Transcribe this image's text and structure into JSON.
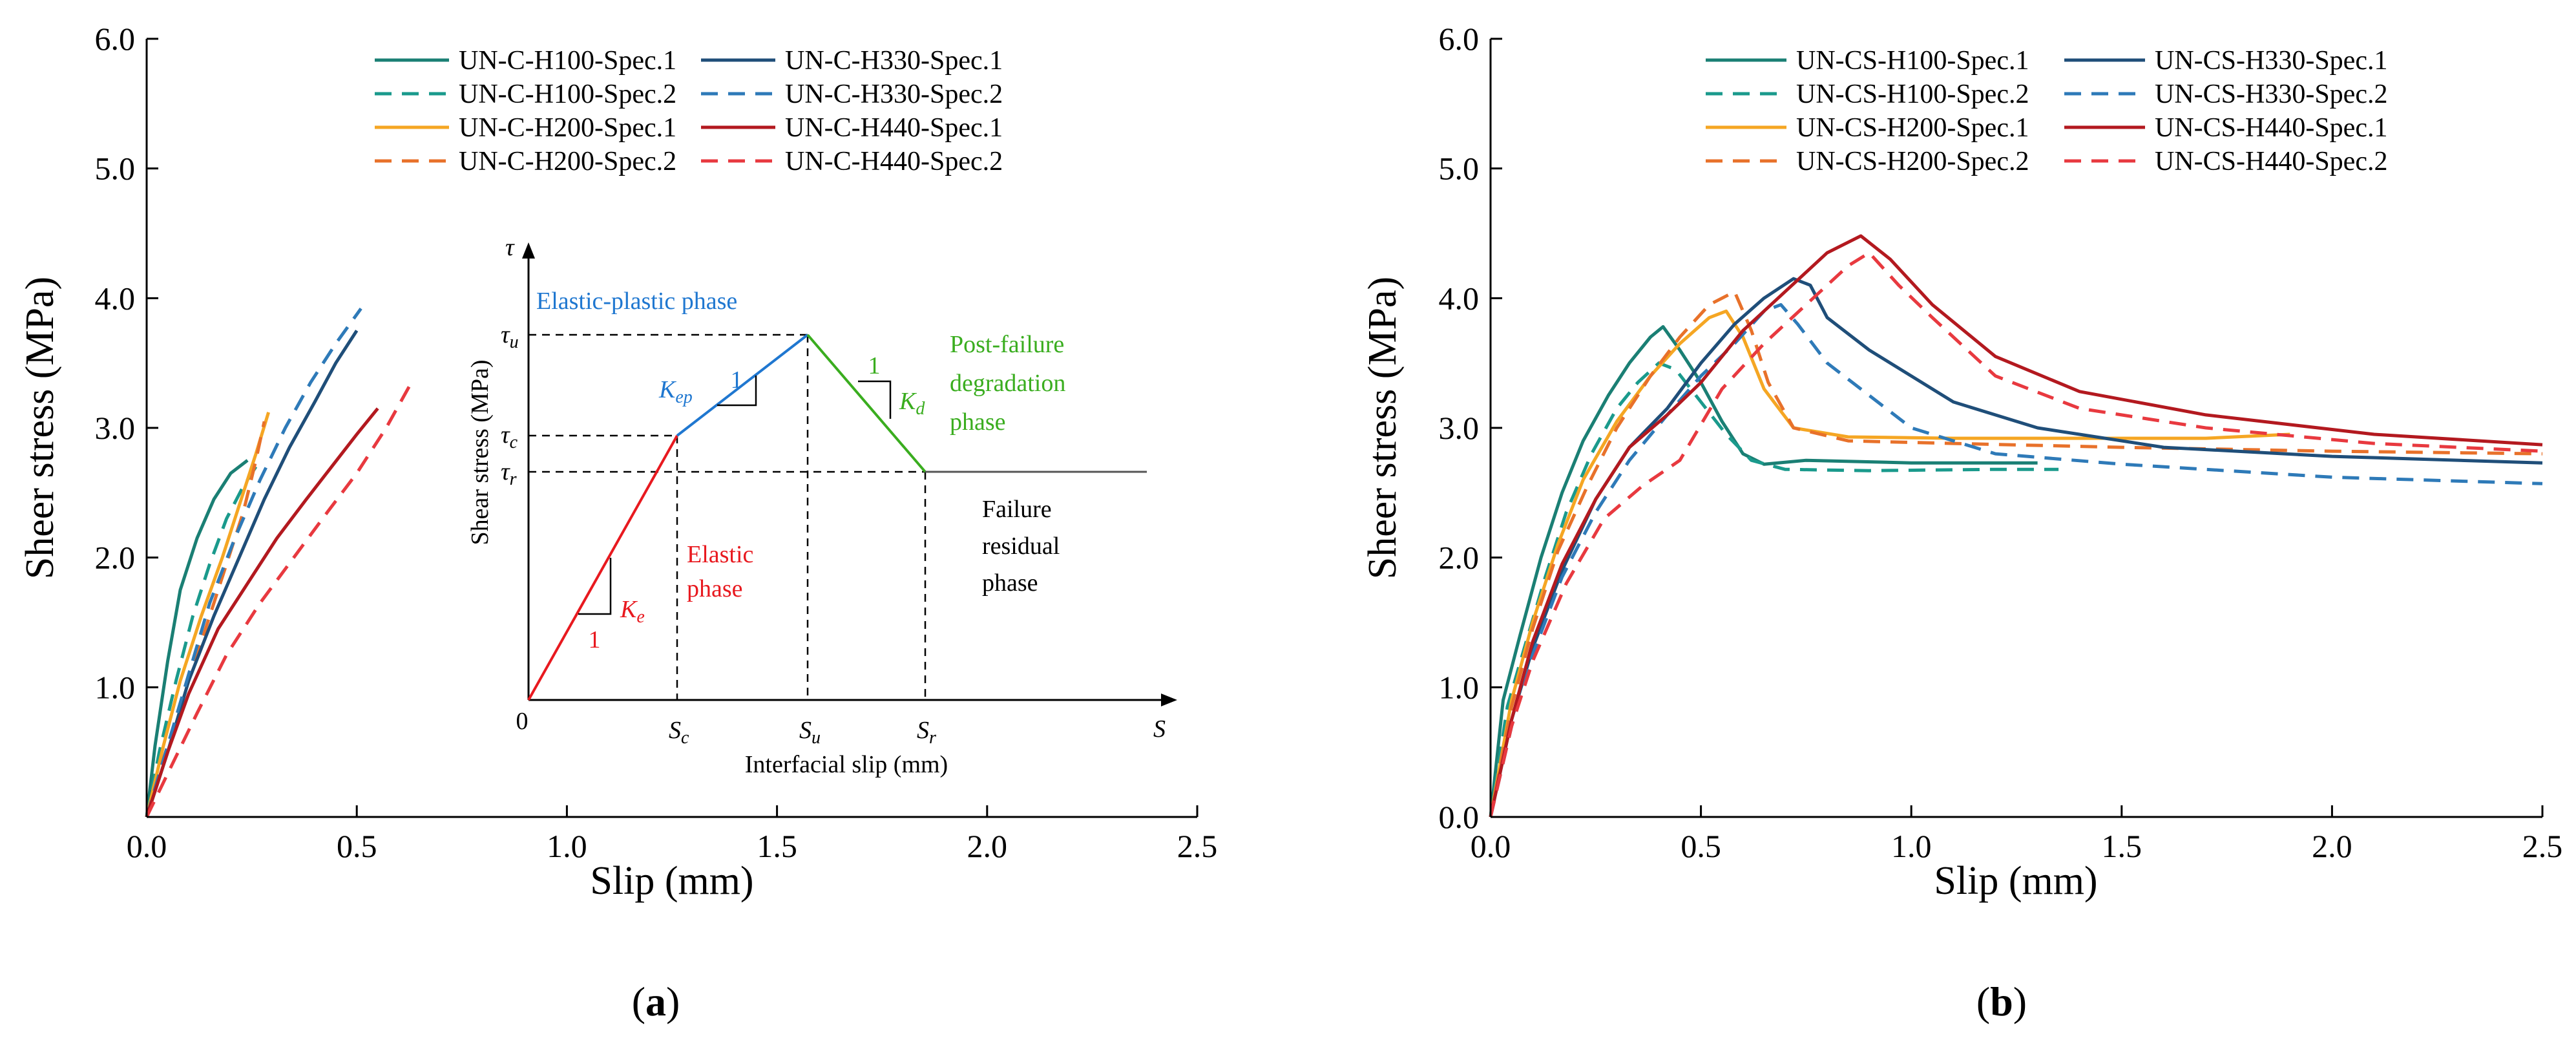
{
  "figure": {
    "panel_a_label": "(a)",
    "panel_a_label_prefix": "(",
    "panel_a_label_letter": "a",
    "panel_a_label_suffix": ")",
    "panel_b_label": "(b)",
    "panel_b_label_prefix": "(",
    "panel_b_label_letter": "b",
    "panel_b_label_suffix": ")"
  },
  "colors": {
    "teal": "#1a7f74",
    "teal2": "#1a9a8c",
    "navy": "#1f4e79",
    "blue": "#2e7ab8",
    "orange": "#f5a623",
    "orange2": "#e8712a",
    "red": "#b3191f",
    "red2": "#e8393f",
    "inset_red": "#e8191f",
    "inset_blue": "#1f77d0",
    "inset_green": "#3aad1f",
    "inset_black": "#333333"
  },
  "chart_data": [
    {
      "panel": "a",
      "type": "line",
      "xlabel": "Slip (mm)",
      "ylabel": "Sheer stress (MPa)",
      "xlim": [
        0,
        2.5
      ],
      "ylim": [
        0,
        6.0
      ],
      "xticks": [
        "0.0",
        "0.5",
        "1.0",
        "1.5",
        "2.0",
        "2.5"
      ],
      "yticks": [
        "1.0",
        "2.0",
        "3.0",
        "4.0",
        "5.0",
        "6.0"
      ],
      "series": [
        {
          "name": "UN-C-H100-Spec.1",
          "color": "#1a7f74",
          "dash": "solid",
          "x": [
            0,
            0.02,
            0.05,
            0.08,
            0.12,
            0.16,
            0.2,
            0.24
          ],
          "y": [
            0,
            0.55,
            1.2,
            1.75,
            2.15,
            2.45,
            2.65,
            2.75
          ]
        },
        {
          "name": "UN-C-H100-Spec.2",
          "color": "#1a9a8c",
          "dash": "dashed",
          "x": [
            0,
            0.03,
            0.07,
            0.11,
            0.15,
            0.19,
            0.23,
            0.26
          ],
          "y": [
            0,
            0.5,
            1.05,
            1.55,
            1.95,
            2.3,
            2.55,
            2.7
          ]
        },
        {
          "name": "UN-C-H200-Spec.1",
          "color": "#f5a623",
          "dash": "solid",
          "x": [
            0,
            0.04,
            0.08,
            0.13,
            0.18,
            0.22,
            0.26,
            0.29
          ],
          "y": [
            0,
            0.55,
            1.05,
            1.55,
            2.0,
            2.4,
            2.8,
            3.12
          ]
        },
        {
          "name": "UN-C-H200-Spec.2",
          "color": "#e8712a",
          "dash": "dashed",
          "x": [
            0,
            0.04,
            0.09,
            0.14,
            0.19,
            0.23,
            0.26,
            0.28
          ],
          "y": [
            0,
            0.45,
            0.95,
            1.45,
            1.95,
            2.35,
            2.75,
            3.05
          ]
        },
        {
          "name": "UN-C-H330-Spec.1",
          "color": "#1f4e79",
          "dash": "solid",
          "x": [
            0,
            0.05,
            0.1,
            0.16,
            0.22,
            0.28,
            0.34,
            0.4,
            0.45,
            0.5
          ],
          "y": [
            0,
            0.5,
            1.05,
            1.55,
            2.0,
            2.45,
            2.85,
            3.2,
            3.5,
            3.75
          ]
        },
        {
          "name": "UN-C-H330-Spec.2",
          "color": "#2e7ab8",
          "dash": "dashed",
          "x": [
            0,
            0.05,
            0.1,
            0.15,
            0.21,
            0.27,
            0.33,
            0.39,
            0.45,
            0.51
          ],
          "y": [
            0,
            0.55,
            1.1,
            1.65,
            2.15,
            2.6,
            3.0,
            3.35,
            3.65,
            3.92
          ]
        },
        {
          "name": "UN-C-H440-Spec.1",
          "color": "#b3191f",
          "dash": "solid",
          "x": [
            0,
            0.05,
            0.1,
            0.17,
            0.24,
            0.31,
            0.38,
            0.44,
            0.5,
            0.55
          ],
          "y": [
            0,
            0.5,
            0.95,
            1.45,
            1.8,
            2.15,
            2.45,
            2.7,
            2.95,
            3.15
          ]
        },
        {
          "name": "UN-C-H440-Spec.2",
          "color": "#e8393f",
          "dash": "dashed",
          "x": [
            0,
            0.06,
            0.12,
            0.19,
            0.27,
            0.35,
            0.43,
            0.5,
            0.57,
            0.63
          ],
          "y": [
            0,
            0.4,
            0.8,
            1.25,
            1.65,
            2.0,
            2.35,
            2.65,
            3.0,
            3.35
          ]
        }
      ],
      "inset": {
        "title": "",
        "ylabel": "Shear stress (MPa)",
        "xlabel": "Interfacial slip (mm)",
        "y_axis_symbol": "τ",
        "x_axis_symbol": "S",
        "origin": "0",
        "tau_u": "τ",
        "tau_u_sub": "u",
        "tau_c": "τ",
        "tau_c_sub": "c",
        "tau_r": "τ",
        "tau_r_sub": "r",
        "S_c": "S",
        "S_c_sub": "c",
        "S_u": "S",
        "S_u_sub": "u",
        "S_r": "S",
        "S_r_sub": "r",
        "elastic_label_1": "Elastic",
        "elastic_label_2": "phase",
        "ep_label": "Elastic-plastic phase",
        "post_label_1": "Post-failure",
        "post_label_2": "degradation",
        "post_label_3": "phase",
        "residual_label_1": "Failure",
        "residual_label_2": "residual",
        "residual_label_3": "phase",
        "Ke": "K",
        "Ke_sub": "e",
        "Kep": "K",
        "Kep_sub": "ep",
        "Kd": "K",
        "Kd_sub": "d",
        "slope_one": "1"
      }
    },
    {
      "panel": "b",
      "type": "line",
      "xlabel": "Slip (mm)",
      "ylabel": "Sheer stress (MPa)",
      "xlim": [
        0,
        2.5
      ],
      "ylim": [
        0,
        6.0
      ],
      "xticks": [
        "0.0",
        "0.5",
        "1.0",
        "1.5",
        "2.0",
        "2.5"
      ],
      "yticks": [
        "0.0",
        "1.0",
        "2.0",
        "3.0",
        "4.0",
        "5.0",
        "6.0"
      ],
      "series": [
        {
          "name": "UN-CS-H100-Spec.1",
          "color": "#1a7f74",
          "dash": "solid",
          "x": [
            0,
            0.03,
            0.07,
            0.12,
            0.17,
            0.22,
            0.28,
            0.33,
            0.38,
            0.41,
            0.45,
            0.5,
            0.55,
            0.6,
            0.65,
            0.75,
            1.0,
            1.3
          ],
          "y": [
            0,
            0.9,
            1.4,
            2.0,
            2.5,
            2.9,
            3.25,
            3.5,
            3.7,
            3.78,
            3.6,
            3.35,
            3.05,
            2.8,
            2.72,
            2.75,
            2.73,
            2.73
          ]
        },
        {
          "name": "UN-CS-H100-Spec.2",
          "color": "#1a9a8c",
          "dash": "dashed",
          "x": [
            0,
            0.04,
            0.08,
            0.13,
            0.18,
            0.24,
            0.3,
            0.35,
            0.4,
            0.44,
            0.5,
            0.56,
            0.62,
            0.7,
            0.9,
            1.2,
            1.35
          ],
          "y": [
            0,
            0.85,
            1.3,
            1.85,
            2.35,
            2.8,
            3.15,
            3.35,
            3.5,
            3.45,
            3.2,
            2.95,
            2.75,
            2.68,
            2.67,
            2.68,
            2.68
          ]
        },
        {
          "name": "UN-CS-H200-Spec.1",
          "color": "#f5a623",
          "dash": "solid",
          "x": [
            0,
            0.05,
            0.1,
            0.16,
            0.22,
            0.3,
            0.38,
            0.45,
            0.52,
            0.56,
            0.6,
            0.65,
            0.72,
            0.85,
            1.1,
            1.4,
            1.7,
            1.9
          ],
          "y": [
            0,
            0.9,
            1.5,
            2.1,
            2.6,
            3.05,
            3.4,
            3.65,
            3.85,
            3.9,
            3.7,
            3.3,
            3.0,
            2.93,
            2.92,
            2.92,
            2.92,
            2.95
          ]
        },
        {
          "name": "UN-CS-H200-Spec.2",
          "color": "#e8712a",
          "dash": "dashed",
          "x": [
            0,
            0.05,
            0.1,
            0.16,
            0.23,
            0.3,
            0.38,
            0.45,
            0.52,
            0.58,
            0.62,
            0.66,
            0.72,
            0.85,
            1.1,
            1.5,
            2.0,
            2.5
          ],
          "y": [
            0,
            0.85,
            1.45,
            2.05,
            2.55,
            3.0,
            3.4,
            3.7,
            3.95,
            4.05,
            3.75,
            3.35,
            3.0,
            2.9,
            2.88,
            2.85,
            2.82,
            2.8
          ]
        },
        {
          "name": "UN-CS-H330-Spec.1",
          "color": "#1f4e79",
          "dash": "solid",
          "x": [
            0,
            0.05,
            0.1,
            0.17,
            0.25,
            0.33,
            0.42,
            0.5,
            0.58,
            0.65,
            0.72,
            0.76,
            0.8,
            0.9,
            1.0,
            1.1,
            1.3,
            1.6,
            2.0,
            2.5
          ],
          "y": [
            0,
            0.75,
            1.3,
            1.9,
            2.45,
            2.85,
            3.15,
            3.5,
            3.8,
            4.0,
            4.15,
            4.1,
            3.85,
            3.6,
            3.4,
            3.2,
            3.0,
            2.85,
            2.78,
            2.73
          ]
        },
        {
          "name": "UN-CS-H330-Spec.2",
          "color": "#2e7ab8",
          "dash": "dashed",
          "x": [
            0,
            0.05,
            0.1,
            0.17,
            0.25,
            0.33,
            0.42,
            0.5,
            0.58,
            0.65,
            0.69,
            0.73,
            0.8,
            0.9,
            1.0,
            1.2,
            1.5,
            2.0,
            2.5
          ],
          "y": [
            0,
            0.7,
            1.25,
            1.85,
            2.35,
            2.75,
            3.1,
            3.4,
            3.65,
            3.9,
            3.95,
            3.8,
            3.5,
            3.25,
            3.0,
            2.8,
            2.72,
            2.62,
            2.57
          ]
        },
        {
          "name": "UN-CS-H440-Spec.1",
          "color": "#b3191f",
          "dash": "solid",
          "x": [
            0,
            0.05,
            0.1,
            0.17,
            0.25,
            0.33,
            0.42,
            0.5,
            0.6,
            0.7,
            0.8,
            0.88,
            0.95,
            1.05,
            1.2,
            1.4,
            1.7,
            2.1,
            2.5
          ],
          "y": [
            0,
            0.75,
            1.35,
            1.95,
            2.45,
            2.85,
            3.1,
            3.35,
            3.75,
            4.05,
            4.35,
            4.48,
            4.3,
            3.95,
            3.55,
            3.28,
            3.1,
            2.95,
            2.87
          ]
        },
        {
          "name": "UN-CS-H440-Spec.2",
          "color": "#e8393f",
          "dash": "dashed",
          "x": [
            0,
            0.05,
            0.1,
            0.18,
            0.27,
            0.36,
            0.45,
            0.55,
            0.65,
            0.75,
            0.85,
            0.9,
            0.97,
            1.05,
            1.2,
            1.4,
            1.7,
            2.1,
            2.5
          ],
          "y": [
            0,
            0.7,
            1.2,
            1.8,
            2.3,
            2.55,
            2.75,
            3.3,
            3.65,
            3.95,
            4.25,
            4.35,
            4.1,
            3.85,
            3.4,
            3.15,
            3.0,
            2.88,
            2.82
          ]
        }
      ]
    }
  ]
}
